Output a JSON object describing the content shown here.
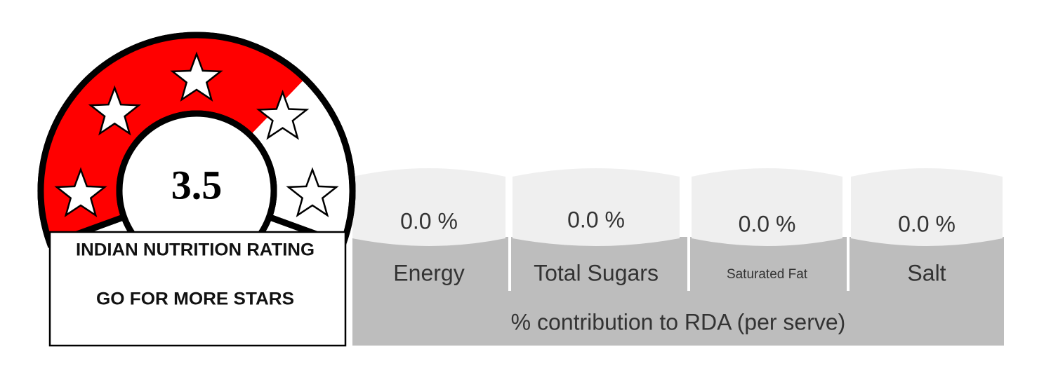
{
  "rating": 3.5,
  "rating_box": {
    "title": "INDIAN NUTRITION RATING",
    "subtitle": "GO FOR MORE STARS"
  },
  "nutrients": [
    {
      "value": "0.0 %",
      "label": "Energy"
    },
    {
      "value": "0.0 %",
      "label": "Total Sugars"
    },
    {
      "value": "0.0 %",
      "label": "Saturated Fat"
    },
    {
      "value": "0.0 %",
      "label": "Salt"
    }
  ],
  "footer": "% contribution to RDA (per serve)"
}
